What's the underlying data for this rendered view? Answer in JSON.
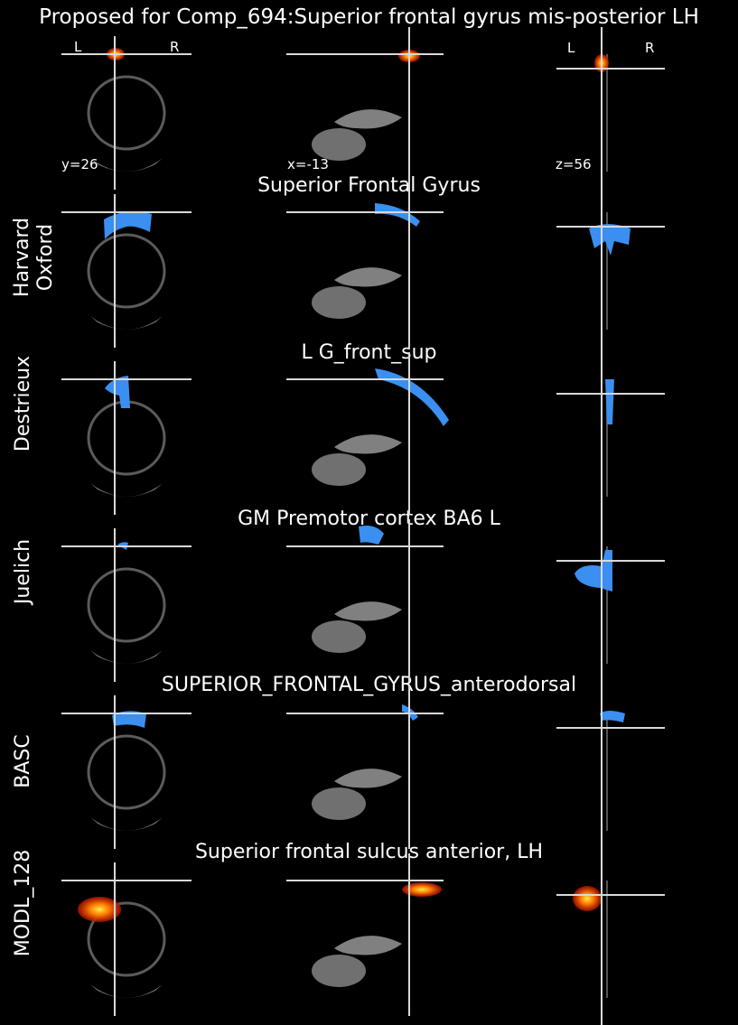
{
  "figure": {
    "main_title": "Proposed for Comp_694:Superior frontal gyrus mis-posterior LH",
    "coords": {
      "y": "y=26",
      "x": "x=-13",
      "z": "z=56"
    },
    "orientation": {
      "left": "L",
      "right": "R"
    }
  },
  "rows": [
    {
      "label": "",
      "title": "",
      "overlay": "heat"
    },
    {
      "label": "Harvard\nOxford",
      "title": "Superior Frontal Gyrus",
      "overlay": "blue"
    },
    {
      "label": "Destrieux",
      "title": "L G_front_sup",
      "overlay": "blue"
    },
    {
      "label": "Juelich",
      "title": "GM Premotor cortex BA6 L",
      "overlay": "blue"
    },
    {
      "label": "BASC",
      "title": "SUPERIOR_FRONTAL_GYRUS_anterodorsal",
      "overlay": "blue"
    },
    {
      "label": "MODL_128",
      "title": "Superior frontal sulcus anterior, LH",
      "overlay": "heat"
    }
  ],
  "colors": {
    "background": "#000000",
    "brain_gray": "#8a8a8a",
    "crosshair": "#d9d9d9",
    "blue_overlay": "#3b8ff0",
    "heat_outer": "#b01000",
    "heat_mid": "#ff7a00",
    "heat_core": "#ffe94a"
  }
}
